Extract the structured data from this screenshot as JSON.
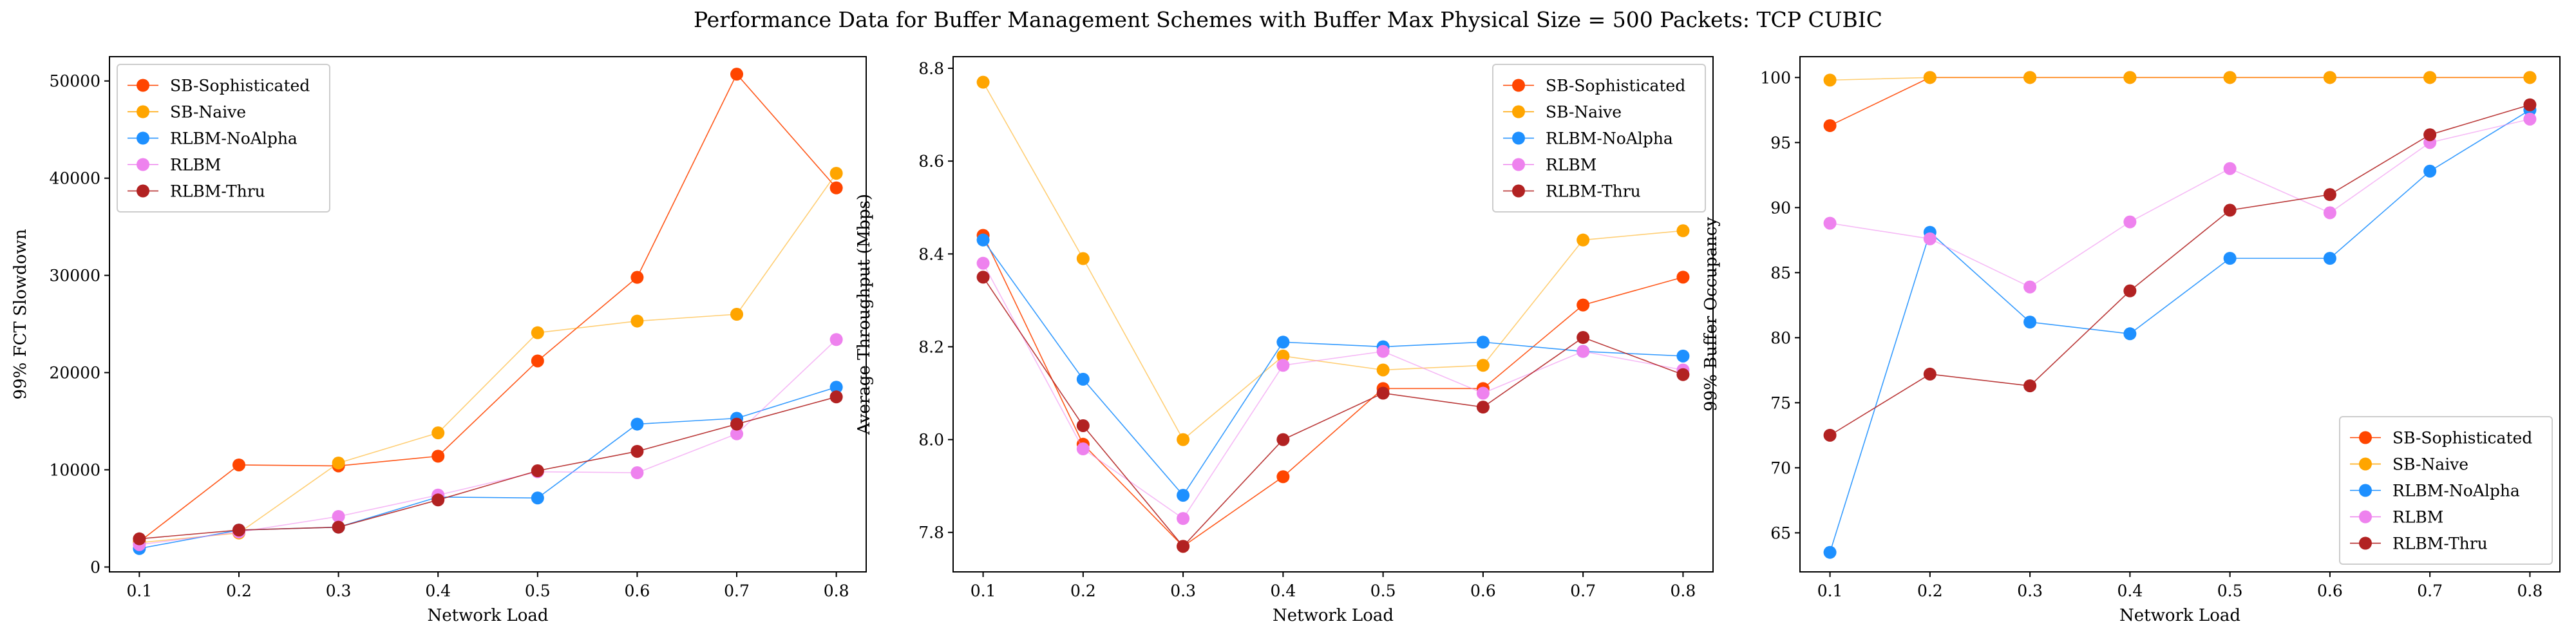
{
  "figure": {
    "title": "Performance Data for Buffer Management Schemes with Buffer Max Physical Size = 500 Packets: TCP CUBIC"
  },
  "chart_data": [
    {
      "type": "line",
      "xlabel": "Network Load",
      "ylabel": "99% FCT Slowdown",
      "x": [
        0.1,
        0.2,
        0.3,
        0.4,
        0.5,
        0.6,
        0.7,
        0.8
      ],
      "xlim": [
        0.07,
        0.83
      ],
      "ylim": [
        -500,
        52500
      ],
      "xticks": [
        0.1,
        0.2,
        0.3,
        0.4,
        0.5,
        0.6,
        0.7,
        0.8
      ],
      "xtick_labels": [
        "0.1",
        "0.2",
        "0.3",
        "0.4",
        "0.5",
        "0.6",
        "0.7",
        "0.8"
      ],
      "yticks": [
        0,
        10000,
        20000,
        30000,
        40000,
        50000
      ],
      "ytick_labels": [
        "0",
        "10000",
        "20000",
        "30000",
        "40000",
        "50000"
      ],
      "legend": "upper-left",
      "grid": false,
      "series": [
        {
          "name": "SB-Sophisticated",
          "color": "#ff4500",
          "values": [
            2600,
            10500,
            10400,
            11400,
            21200,
            29800,
            50700,
            39000
          ]
        },
        {
          "name": "SB-Naive",
          "color": "#ffa500",
          "values": [
            2500,
            3500,
            10700,
            13800,
            24100,
            25300,
            26000,
            40500
          ]
        },
        {
          "name": "RLBM-NoAlpha",
          "color": "#1e90ff",
          "values": [
            1900,
            3800,
            4100,
            7200,
            7100,
            14700,
            15300,
            18500
          ]
        },
        {
          "name": "RLBM",
          "color": "#ee82ee",
          "values": [
            2300,
            3600,
            5200,
            7400,
            9800,
            9700,
            13700,
            23400
          ]
        },
        {
          "name": "RLBM-Thru",
          "color": "#b22222",
          "values": [
            2900,
            3800,
            4100,
            6900,
            9900,
            11900,
            14700,
            17500
          ]
        }
      ]
    },
    {
      "type": "line",
      "xlabel": "Network Load",
      "ylabel": "Average Throughput (Mbps)",
      "x": [
        0.1,
        0.2,
        0.3,
        0.4,
        0.5,
        0.6,
        0.7,
        0.8
      ],
      "xlim": [
        0.07,
        0.83
      ],
      "ylim": [
        7.715,
        8.825
      ],
      "xticks": [
        0.1,
        0.2,
        0.3,
        0.4,
        0.5,
        0.6,
        0.7,
        0.8
      ],
      "xtick_labels": [
        "0.1",
        "0.2",
        "0.3",
        "0.4",
        "0.5",
        "0.6",
        "0.7",
        "0.8"
      ],
      "yticks": [
        7.8,
        8.0,
        8.2,
        8.4,
        8.6,
        8.8
      ],
      "ytick_labels": [
        "7.8",
        "8.0",
        "8.2",
        "8.4",
        "8.6",
        "8.8"
      ],
      "legend": "upper-right",
      "grid": false,
      "series": [
        {
          "name": "SB-Sophisticated",
          "color": "#ff4500",
          "values": [
            8.44,
            7.99,
            7.77,
            7.92,
            8.11,
            8.11,
            8.29,
            8.35
          ]
        },
        {
          "name": "SB-Naive",
          "color": "#ffa500",
          "values": [
            8.77,
            8.39,
            8.0,
            8.18,
            8.15,
            8.16,
            8.43,
            8.45
          ]
        },
        {
          "name": "RLBM-NoAlpha",
          "color": "#1e90ff",
          "values": [
            8.43,
            8.13,
            7.88,
            8.21,
            8.2,
            8.21,
            8.19,
            8.18
          ]
        },
        {
          "name": "RLBM",
          "color": "#ee82ee",
          "values": [
            8.38,
            7.98,
            7.83,
            8.16,
            8.19,
            8.1,
            8.19,
            8.15
          ]
        },
        {
          "name": "RLBM-Thru",
          "color": "#b22222",
          "values": [
            8.35,
            8.03,
            7.77,
            8.0,
            8.1,
            8.07,
            8.22,
            8.14
          ]
        }
      ]
    },
    {
      "type": "line",
      "xlabel": "Network Load",
      "ylabel": "99% Buffer Occupancy",
      "x": [
        0.1,
        0.2,
        0.3,
        0.4,
        0.5,
        0.6,
        0.7,
        0.8
      ],
      "xlim": [
        0.07,
        0.83
      ],
      "ylim": [
        62.0,
        101.6
      ],
      "xticks": [
        0.1,
        0.2,
        0.3,
        0.4,
        0.5,
        0.6,
        0.7,
        0.8
      ],
      "xtick_labels": [
        "0.1",
        "0.2",
        "0.3",
        "0.4",
        "0.5",
        "0.6",
        "0.7",
        "0.8"
      ],
      "yticks": [
        65,
        70,
        75,
        80,
        85,
        90,
        95,
        100
      ],
      "ytick_labels": [
        "65",
        "70",
        "75",
        "80",
        "85",
        "90",
        "95",
        "100"
      ],
      "legend": "lower-right",
      "grid": false,
      "series": [
        {
          "name": "SB-Sophisticated",
          "color": "#ff4500",
          "values": [
            96.3,
            100,
            100,
            100,
            100,
            100,
            100,
            100
          ]
        },
        {
          "name": "SB-Naive",
          "color": "#ffa500",
          "values": [
            99.8,
            100,
            100,
            100,
            100,
            100,
            100,
            100
          ]
        },
        {
          "name": "RLBM-NoAlpha",
          "color": "#1e90ff",
          "values": [
            63.5,
            88.1,
            81.2,
            80.3,
            86.1,
            86.1,
            92.8,
            97.5
          ]
        },
        {
          "name": "RLBM",
          "color": "#ee82ee",
          "values": [
            88.8,
            87.6,
            83.9,
            88.9,
            93.0,
            89.6,
            95.0,
            96.8
          ]
        },
        {
          "name": "RLBM-Thru",
          "color": "#b22222",
          "values": [
            72.5,
            77.2,
            76.3,
            83.6,
            89.8,
            91.0,
            95.6,
            97.9
          ]
        }
      ]
    }
  ]
}
